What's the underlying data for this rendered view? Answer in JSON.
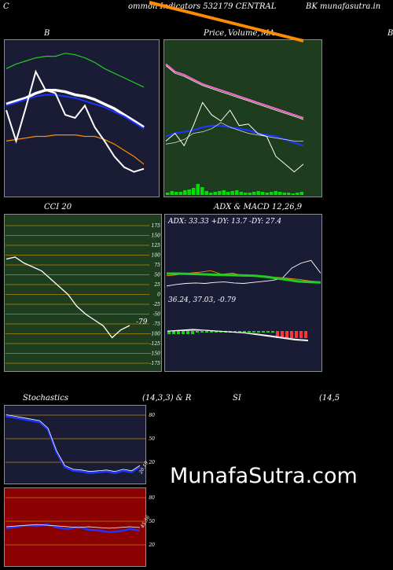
{
  "header": {
    "left_char": "C",
    "title": "ommon  Indicators 532179 CENTRAL",
    "right_text": "BK munafasutra.in"
  },
  "panels": {
    "bollinger": {
      "label": "B",
      "right_edge_label": "B"
    },
    "price": {
      "label1": "Price,",
      "label2": "Volume,",
      "label3": "MA"
    },
    "cci": {
      "label": "CCI 20",
      "last_value": "-79",
      "ticks": [
        "175",
        "150",
        "125",
        "100",
        "75",
        "50",
        "25",
        "0",
        "-25",
        "-50",
        "-75",
        "-100",
        "-125",
        "-150",
        "-175"
      ]
    },
    "adx": {
      "label": "ADX  & MACD 12,26,9",
      "adx_text": "ADX: 33.33 +DY: 13.7 -DY: 27.4",
      "macd_text": "36.24,  37.03,  -0.79"
    },
    "stoch": {
      "label_left": "Stochastics",
      "label_mid": "(14,3,3) & R",
      "label_si": "SI",
      "label_right": "(14,5",
      "ticks": [
        "80",
        "50",
        "20"
      ],
      "last_value": "20.19"
    },
    "rsi": {
      "ticks": [
        "80",
        "50",
        "20"
      ],
      "last_value": "45.56"
    }
  },
  "watermark": "MunafaSutra.com",
  "colors": {
    "bollinger_bg": "#1a1c35",
    "price_bg": "#1e3d1e",
    "cci_bg": "#1e3d1e",
    "adx_bg": "#1a1c35",
    "stoch_bg": "#1a1c35",
    "rsi_bg": "#8b0000",
    "orange": "#ff8c00",
    "blue": "#1e35ff",
    "green_line": "#22cc22"
  },
  "chart_data": [
    {
      "type": "line",
      "title": "B",
      "series": [
        {
          "values": [
            142,
            145,
            147,
            149,
            150,
            150,
            152,
            151,
            149,
            146,
            142,
            139,
            136,
            133,
            130
          ]
        },
        {
          "values": [
            119,
            121,
            123,
            126,
            128,
            128,
            127,
            125,
            124,
            122,
            119,
            116,
            112,
            108,
            104
          ]
        },
        {
          "values": [
            118,
            120,
            122,
            124,
            125,
            125,
            124,
            123,
            121,
            119,
            117,
            114,
            111,
            107,
            103
          ]
        },
        {
          "values": [
            95,
            96,
            97,
            98,
            98,
            99,
            99,
            99,
            98,
            98,
            96,
            93,
            89,
            85,
            80
          ]
        },
        {
          "values": [
            115,
            95,
            117,
            140,
            128,
            126,
            112,
            110,
            118,
            104,
            95,
            85,
            78,
            75,
            77
          ]
        }
      ]
    },
    {
      "type": "line",
      "title": "Price, Volume, MA",
      "series": [
        {
          "values": [
            125,
            120,
            118,
            115,
            112,
            110,
            108,
            106,
            104,
            102,
            100,
            98,
            96,
            94,
            92,
            90
          ]
        },
        {
          "values": [
            124,
            119,
            117,
            114,
            111,
            109,
            107,
            105,
            103,
            101,
            99,
            97,
            95,
            93,
            91,
            89
          ]
        },
        {
          "values": [
            78,
            80,
            81,
            82,
            84,
            85,
            85,
            84,
            83,
            82,
            80,
            79,
            78,
            76,
            74,
            72
          ]
        },
        {
          "values": [
            73,
            74,
            76,
            80,
            81,
            83,
            87,
            84,
            82,
            80,
            79,
            78,
            77,
            76,
            75,
            75
          ]
        },
        {
          "values": [
            75,
            80,
            72,
            85,
            100,
            92,
            88,
            95,
            85,
            86,
            80,
            78,
            65,
            60,
            55,
            60
          ]
        }
      ],
      "volume": [
        3,
        5,
        4,
        4,
        6,
        7,
        9,
        14,
        10,
        5,
        3,
        4,
        5,
        6,
        4,
        5,
        6,
        4,
        3,
        3,
        4,
        5,
        4,
        3,
        4,
        5,
        4,
        3,
        3,
        2,
        3,
        4
      ]
    },
    {
      "type": "line",
      "title": "CCI 20",
      "ylim": [
        -175,
        175
      ],
      "series": [
        {
          "values": [
            90,
            95,
            80,
            70,
            60,
            40,
            20,
            0,
            -30,
            -50,
            -65,
            -80,
            -110,
            -90,
            -79
          ]
        }
      ]
    },
    {
      "type": "line",
      "title": "ADX & MACD 12,26,9",
      "series": [
        {
          "values": [
            25,
            28,
            30,
            31,
            30,
            32,
            33,
            31,
            30,
            32,
            34,
            36,
            40,
            60,
            70,
            75,
            50
          ]
        },
        {
          "values": [
            45,
            47,
            50,
            52,
            55,
            48,
            50,
            45,
            44,
            43,
            42,
            40,
            38,
            35,
            33
          ]
        },
        {
          "values": [
            55,
            55,
            54,
            53,
            52,
            51,
            50,
            49,
            48,
            45,
            40,
            35,
            30,
            28,
            27
          ]
        }
      ],
      "macd": [
        36.24,
        37.03,
        -0.79
      ]
    },
    {
      "type": "line",
      "title": "Stochastics (14,3,3)",
      "ylim": [
        0,
        100
      ],
      "series": [
        {
          "values": [
            88,
            86,
            84,
            82,
            80,
            70,
            40,
            20,
            15,
            14,
            12,
            13,
            14,
            12,
            15,
            13,
            20
          ]
        }
      ]
    },
    {
      "type": "line",
      "title": "RSI",
      "ylim": [
        0,
        100
      ],
      "series": [
        {
          "values": [
            48,
            50,
            52,
            51,
            53,
            49,
            47,
            50,
            46,
            45,
            43,
            44,
            47,
            45
          ]
        }
      ]
    }
  ]
}
